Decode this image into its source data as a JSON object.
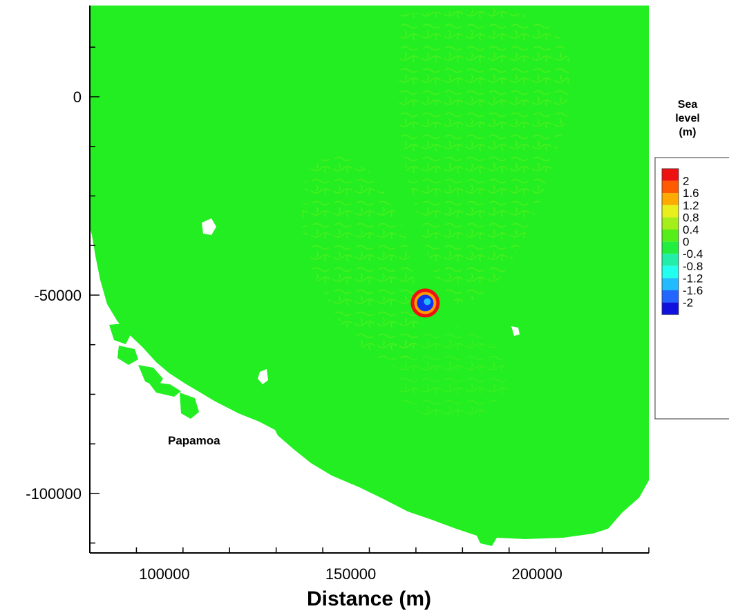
{
  "map": {
    "place_label": "Papamoa",
    "colors": {
      "sea_base": "#22ee22",
      "sea_texture": "#66f01a",
      "land": "#ffffff",
      "source_ring_outer": "#ee1111",
      "source_core": "#1133ee"
    }
  },
  "chart_data": {
    "type": "heatmap",
    "xlabel": "Distance (m)",
    "ylabel": "",
    "xlim": [
      80000,
      230000
    ],
    "ylim": [
      -115000,
      23000
    ],
    "x_ticks": [
      {
        "value": 100000,
        "label": "100000"
      },
      {
        "value": 150000,
        "label": "150000"
      },
      {
        "value": 200000,
        "label": "200000"
      }
    ],
    "x_minor_step": 12500,
    "y_ticks": [
      {
        "value": 0,
        "label": "0"
      },
      {
        "value": -50000,
        "label": "-50000"
      },
      {
        "value": -100000,
        "label": "-100000"
      }
    ],
    "y_minor_step": 12500,
    "source_location": {
      "x": 170000,
      "y": -52000
    },
    "legend": {
      "title_lines": [
        "Sea",
        "level",
        "(m)"
      ],
      "placement": "right",
      "levels": [
        {
          "label": "2",
          "color": "#ee1111"
        },
        {
          "label": "1.6",
          "color": "#ff5a00"
        },
        {
          "label": "1.2",
          "color": "#ffaa00"
        },
        {
          "label": "0.8",
          "color": "#e9ef1c"
        },
        {
          "label": "0.4",
          "color": "#a6ee1a"
        },
        {
          "label": "0",
          "color": "#55ee18"
        },
        {
          "label": "-0.4",
          "color": "#22ee40"
        },
        {
          "label": "-0.8",
          "color": "#22eeaa"
        },
        {
          "label": "-1.2",
          "color": "#22ffee"
        },
        {
          "label": "-1.6",
          "color": "#22bbff"
        },
        {
          "label": "-2",
          "color": "#2266ff"
        },
        {
          "label": "",
          "color": "#1111dd"
        }
      ]
    }
  }
}
